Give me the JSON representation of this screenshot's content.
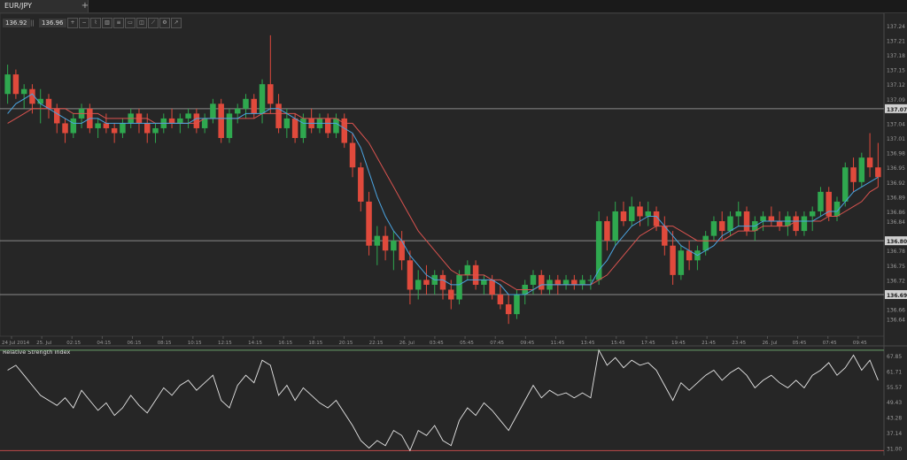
{
  "tab": {
    "title": "EUR/JPY",
    "add_label": "+"
  },
  "quotes": {
    "bid": "136.92",
    "separator": "||",
    "ask": "136.96"
  },
  "toolbar": {
    "icons": [
      "zoom-in-icon",
      "zoom-out-icon",
      "chart-type-icon",
      "candle-icon",
      "indicators-icon",
      "drawing-icon",
      "template-icon",
      "line-tool-icon",
      "settings-icon",
      "share-icon"
    ],
    "glyphs": [
      "+",
      "−",
      "⌇",
      "▥",
      "≡",
      "▭",
      "◫",
      "⟋",
      "⚙",
      "↗"
    ]
  },
  "colors": {
    "up": "#2fa84f",
    "down": "#e04a3c",
    "ma_fast": "#4aa3df",
    "ma_slow": "#d9534f",
    "grid": "#8a8a8a",
    "rsi_line": "#e6e6e6"
  },
  "chart_data": [
    {
      "type": "candlestick",
      "title": "",
      "ylim": [
        136.605,
        137.265
      ],
      "y_ticks": [
        137.24,
        137.21,
        137.18,
        137.15,
        137.12,
        137.09,
        137.04,
        137.01,
        136.98,
        136.95,
        136.92,
        136.89,
        136.86,
        136.84,
        136.78,
        136.75,
        136.72,
        136.69,
        136.66,
        136.64
      ],
      "x_ticks": [
        "24 Jul 2014",
        "25. Jul",
        "02:15",
        "04:15",
        "06:15",
        "08:15",
        "10:15",
        "12:15",
        "14:15",
        "16:15",
        "18:15",
        "20:15",
        "22:15",
        "26. Jul",
        "03:45",
        "05:45",
        "07:45",
        "09:45",
        "11:45",
        "13:45",
        "15:45",
        "17:45",
        "19:45",
        "21:45",
        "23:45",
        "26. Jul",
        "05:45",
        "07:45",
        "09:45"
      ],
      "price_levels": [
        "137.07",
        "136.80",
        "136.69"
      ],
      "price_level_values": [
        137.07,
        136.8,
        136.69
      ],
      "candles": [
        [
          137.1,
          137.16,
          137.08,
          137.14
        ],
        [
          137.14,
          137.15,
          137.09,
          137.1
        ],
        [
          137.1,
          137.12,
          137.07,
          137.11
        ],
        [
          137.11,
          137.12,
          137.06,
          137.08
        ],
        [
          137.08,
          137.11,
          137.04,
          137.09
        ],
        [
          137.09,
          137.1,
          137.05,
          137.07
        ],
        [
          137.07,
          137.08,
          137.02,
          137.04
        ],
        [
          137.04,
          137.05,
          137.0,
          137.02
        ],
        [
          137.02,
          137.06,
          137.01,
          137.05
        ],
        [
          137.05,
          137.08,
          137.03,
          137.07
        ],
        [
          137.07,
          137.08,
          137.02,
          137.03
        ],
        [
          137.03,
          137.05,
          137.01,
          137.04
        ],
        [
          137.04,
          137.06,
          137.02,
          137.03
        ],
        [
          137.03,
          137.04,
          137.0,
          137.02
        ],
        [
          137.02,
          137.05,
          137.01,
          137.04
        ],
        [
          137.04,
          137.07,
          137.03,
          137.06
        ],
        [
          137.06,
          137.07,
          137.02,
          137.04
        ],
        [
          137.04,
          137.06,
          137.0,
          137.02
        ],
        [
          137.02,
          137.04,
          137.0,
          137.03
        ],
        [
          137.03,
          137.06,
          137.02,
          137.05
        ],
        [
          137.05,
          137.07,
          137.03,
          137.04
        ],
        [
          137.04,
          137.06,
          137.02,
          137.05
        ],
        [
          137.05,
          137.07,
          137.03,
          137.06
        ],
        [
          137.06,
          137.07,
          137.02,
          137.03
        ],
        [
          137.03,
          137.06,
          137.02,
          137.05
        ],
        [
          137.05,
          137.09,
          137.04,
          137.08
        ],
        [
          137.08,
          137.09,
          137.0,
          137.01
        ],
        [
          137.01,
          137.07,
          137.0,
          137.06
        ],
        [
          137.06,
          137.08,
          137.04,
          137.07
        ],
        [
          137.07,
          137.1,
          137.05,
          137.09
        ],
        [
          137.09,
          137.1,
          137.05,
          137.06
        ],
        [
          137.06,
          137.13,
          137.04,
          137.12
        ],
        [
          137.12,
          137.22,
          137.06,
          137.08
        ],
        [
          137.08,
          137.1,
          137.02,
          137.03
        ],
        [
          137.03,
          137.07,
          137.01,
          137.05
        ],
        [
          137.05,
          137.06,
          137.0,
          137.01
        ],
        [
          137.01,
          137.06,
          137.0,
          137.05
        ],
        [
          137.05,
          137.07,
          137.02,
          137.03
        ],
        [
          137.03,
          137.06,
          137.02,
          137.05
        ],
        [
          137.05,
          137.06,
          137.01,
          137.02
        ],
        [
          137.02,
          137.06,
          137.01,
          137.05
        ],
        [
          137.05,
          137.06,
          136.99,
          137.0
        ],
        [
          137.0,
          137.02,
          136.93,
          136.95
        ],
        [
          136.95,
          136.96,
          136.86,
          136.88
        ],
        [
          136.88,
          136.9,
          136.77,
          136.79
        ],
        [
          136.79,
          136.83,
          136.75,
          136.81
        ],
        [
          136.81,
          136.83,
          136.76,
          136.78
        ],
        [
          136.78,
          136.82,
          136.74,
          136.8
        ],
        [
          136.8,
          136.82,
          136.74,
          136.76
        ],
        [
          136.76,
          136.78,
          136.67,
          136.7
        ],
        [
          136.7,
          136.74,
          136.68,
          136.72
        ],
        [
          136.72,
          136.75,
          136.69,
          136.71
        ],
        [
          136.71,
          136.74,
          136.69,
          136.73
        ],
        [
          136.73,
          136.74,
          136.68,
          136.7
        ],
        [
          136.7,
          136.72,
          136.66,
          136.68
        ],
        [
          136.68,
          136.74,
          136.67,
          136.73
        ],
        [
          136.73,
          136.76,
          136.72,
          136.75
        ],
        [
          136.75,
          136.76,
          136.7,
          136.71
        ],
        [
          136.71,
          136.73,
          136.69,
          136.72
        ],
        [
          136.72,
          136.73,
          136.68,
          136.69
        ],
        [
          136.69,
          136.71,
          136.66,
          136.67
        ],
        [
          136.67,
          136.69,
          136.63,
          136.65
        ],
        [
          136.65,
          136.7,
          136.64,
          136.69
        ],
        [
          136.69,
          136.72,
          136.67,
          136.71
        ],
        [
          136.71,
          136.74,
          136.69,
          136.73
        ],
        [
          136.73,
          136.74,
          136.69,
          136.7
        ],
        [
          136.7,
          136.73,
          136.69,
          136.72
        ],
        [
          136.72,
          136.73,
          136.69,
          136.71
        ],
        [
          136.71,
          136.73,
          136.7,
          136.72
        ],
        [
          136.72,
          136.73,
          136.7,
          136.71
        ],
        [
          136.71,
          136.73,
          136.7,
          136.72
        ],
        [
          136.72,
          136.73,
          136.7,
          136.72
        ],
        [
          136.72,
          136.86,
          136.71,
          136.84
        ],
        [
          136.84,
          136.85,
          136.78,
          136.8
        ],
        [
          136.8,
          136.88,
          136.79,
          136.86
        ],
        [
          136.86,
          136.88,
          136.83,
          136.84
        ],
        [
          136.84,
          136.89,
          136.83,
          136.87
        ],
        [
          136.87,
          136.88,
          136.83,
          136.85
        ],
        [
          136.85,
          136.88,
          136.83,
          136.86
        ],
        [
          136.86,
          136.87,
          136.82,
          136.83
        ],
        [
          136.83,
          136.85,
          136.77,
          136.79
        ],
        [
          136.79,
          136.82,
          136.71,
          136.73
        ],
        [
          136.73,
          136.79,
          136.72,
          136.78
        ],
        [
          136.78,
          136.8,
          136.74,
          136.76
        ],
        [
          136.76,
          136.79,
          136.74,
          136.78
        ],
        [
          136.78,
          136.82,
          136.77,
          136.81
        ],
        [
          136.81,
          136.85,
          136.8,
          136.84
        ],
        [
          136.84,
          136.86,
          136.8,
          136.82
        ],
        [
          136.82,
          136.86,
          136.81,
          136.85
        ],
        [
          136.85,
          136.88,
          136.83,
          136.86
        ],
        [
          136.86,
          136.87,
          136.81,
          136.82
        ],
        [
          136.82,
          136.85,
          136.8,
          136.84
        ],
        [
          136.84,
          136.86,
          136.82,
          136.85
        ],
        [
          136.85,
          136.87,
          136.83,
          136.84
        ],
        [
          136.84,
          136.86,
          136.82,
          136.83
        ],
        [
          136.83,
          136.86,
          136.81,
          136.85
        ],
        [
          136.85,
          136.86,
          136.81,
          136.82
        ],
        [
          136.82,
          136.86,
          136.81,
          136.85
        ],
        [
          136.85,
          136.87,
          136.82,
          136.86
        ],
        [
          136.86,
          136.91,
          136.85,
          136.9
        ],
        [
          136.9,
          136.91,
          136.84,
          136.85
        ],
        [
          136.85,
          136.89,
          136.84,
          136.88
        ],
        [
          136.88,
          136.96,
          136.87,
          136.95
        ],
        [
          136.95,
          136.97,
          136.9,
          136.92
        ],
        [
          136.92,
          136.98,
          136.91,
          136.97
        ],
        [
          136.97,
          137.02,
          136.93,
          136.95
        ],
        [
          136.95,
          137.0,
          136.91,
          136.93
        ]
      ],
      "ma_fast": [
        137.06,
        137.08,
        137.09,
        137.1,
        137.08,
        137.07,
        137.06,
        137.05,
        137.04,
        137.04,
        137.05,
        137.05,
        137.04,
        137.04,
        137.04,
        137.04,
        137.04,
        137.04,
        137.04,
        137.04,
        137.04,
        137.04,
        137.04,
        137.05,
        137.05,
        137.05,
        137.05,
        137.05,
        137.05,
        137.06,
        137.06,
        137.06,
        137.07,
        137.07,
        137.06,
        137.05,
        137.04,
        137.04,
        137.04,
        137.04,
        137.04,
        137.03,
        137.02,
        136.99,
        136.94,
        136.89,
        136.85,
        136.82,
        136.8,
        136.77,
        136.75,
        136.73,
        136.72,
        136.72,
        136.71,
        136.71,
        136.72,
        136.72,
        136.72,
        136.72,
        136.71,
        136.69,
        136.69,
        136.69,
        136.7,
        136.71,
        136.71,
        136.71,
        136.71,
        136.71,
        136.71,
        136.71,
        136.74,
        136.76,
        136.79,
        136.81,
        136.83,
        136.84,
        136.85,
        136.85,
        136.83,
        136.81,
        136.79,
        136.78,
        136.77,
        136.78,
        136.79,
        136.81,
        136.82,
        136.83,
        136.83,
        136.83,
        136.84,
        136.84,
        136.84,
        136.84,
        136.84,
        136.84,
        136.84,
        136.85,
        136.86,
        136.86,
        136.88,
        136.9,
        136.91,
        136.92,
        136.93
      ],
      "ma_slow": [
        137.04,
        137.05,
        137.06,
        137.07,
        137.07,
        137.07,
        137.07,
        137.07,
        137.06,
        137.06,
        137.06,
        137.06,
        137.05,
        137.05,
        137.05,
        137.05,
        137.05,
        137.05,
        137.04,
        137.04,
        137.04,
        137.04,
        137.04,
        137.04,
        137.05,
        137.05,
        137.05,
        137.05,
        137.05,
        137.05,
        137.05,
        137.06,
        137.06,
        137.06,
        137.06,
        137.06,
        137.05,
        137.05,
        137.05,
        137.05,
        137.05,
        137.04,
        137.04,
        137.02,
        137.0,
        136.97,
        136.94,
        136.91,
        136.88,
        136.85,
        136.82,
        136.8,
        136.78,
        136.76,
        136.74,
        136.73,
        136.73,
        136.73,
        136.73,
        136.72,
        136.72,
        136.71,
        136.7,
        136.7,
        136.7,
        136.71,
        136.71,
        136.71,
        136.71,
        136.71,
        136.71,
        136.71,
        136.72,
        136.73,
        136.75,
        136.77,
        136.79,
        136.81,
        136.82,
        136.83,
        136.83,
        136.83,
        136.82,
        136.81,
        136.8,
        136.8,
        136.8,
        136.8,
        136.81,
        136.82,
        136.82,
        136.82,
        136.83,
        136.83,
        136.83,
        136.83,
        136.84,
        136.84,
        136.84,
        136.84,
        136.85,
        136.85,
        136.86,
        136.87,
        136.88,
        136.9,
        136.91
      ]
    },
    {
      "type": "line",
      "title": "Relative Strength Index",
      "ylim": [
        28.0,
        71.0
      ],
      "y_ticks": [
        67.85,
        61.71,
        55.57,
        49.43,
        43.28,
        37.14,
        31.0
      ],
      "levels": [
        70,
        30
      ],
      "series": [
        {
          "values": [
            62,
            64,
            60,
            56,
            52,
            50,
            48,
            51,
            47,
            54,
            50,
            46,
            49,
            44,
            47,
            52,
            48,
            45,
            50,
            55,
            52,
            56,
            58,
            54,
            57,
            60,
            50,
            47,
            56,
            60,
            57,
            66,
            64,
            52,
            56,
            50,
            55,
            52,
            49,
            47,
            50,
            45,
            40,
            34,
            31,
            34,
            32,
            38,
            36,
            30,
            38,
            36,
            40,
            34,
            32,
            42,
            47,
            44,
            49,
            46,
            42,
            38,
            44,
            50,
            56,
            51,
            54,
            52,
            53,
            51,
            53,
            51,
            70,
            64,
            67,
            63,
            66,
            64,
            65,
            62,
            56,
            50,
            57,
            54,
            57,
            60,
            62,
            58,
            61,
            63,
            60,
            55,
            58,
            60,
            57,
            55,
            58,
            55,
            60,
            62,
            65,
            60,
            63,
            68,
            62,
            66,
            58
          ]
        }
      ]
    }
  ]
}
